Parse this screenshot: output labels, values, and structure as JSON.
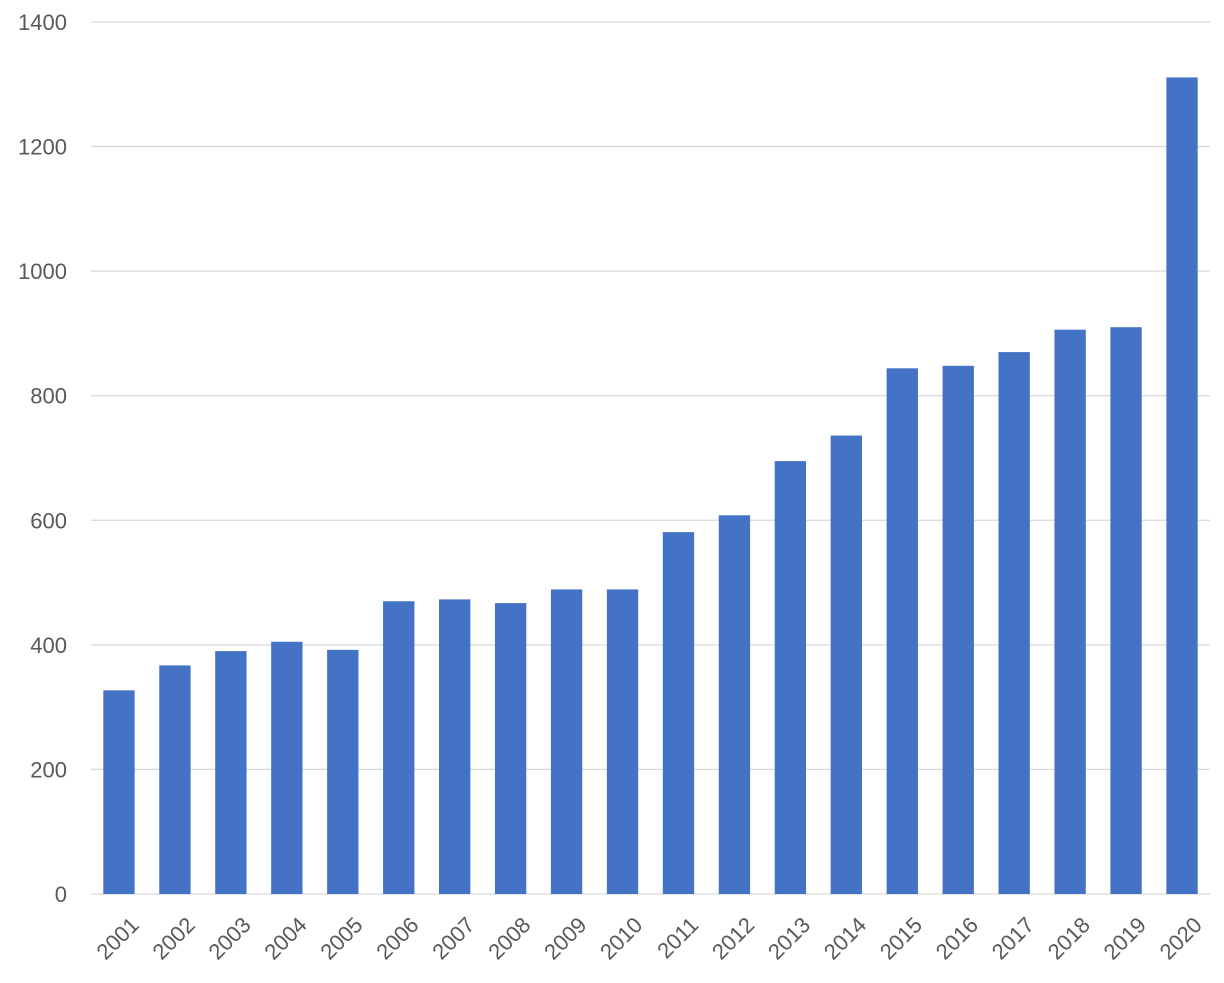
{
  "chart_data": {
    "type": "bar",
    "title": "",
    "xlabel": "",
    "ylabel": "",
    "categories": [
      "2001",
      "2002",
      "2003",
      "2004",
      "2005",
      "2006",
      "2007",
      "2008",
      "2009",
      "2010",
      "2011",
      "2012",
      "2013",
      "2014",
      "2015",
      "2016",
      "2017",
      "2018",
      "2019",
      "2020"
    ],
    "values": [
      327,
      367,
      390,
      405,
      392,
      470,
      473,
      467,
      489,
      489,
      581,
      608,
      695,
      736,
      844,
      848,
      870,
      906,
      910,
      1311
    ],
    "ylim": [
      0,
      1400
    ],
    "yticks": [
      0,
      200,
      400,
      600,
      800,
      1000,
      1200,
      1400
    ],
    "grid": true,
    "legend": "none",
    "bar_color": "#4472C4"
  }
}
